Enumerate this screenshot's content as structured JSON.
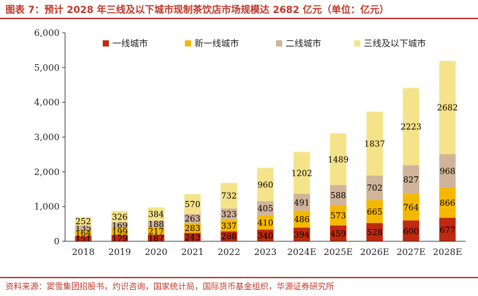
{
  "title": "图表 7：预计 2028 年三线及以下城市现制茶饮店市场规模达 2682 亿元（单位：亿元）",
  "source": "资料来源：窦雪集团招股书，灼识咨询，国家统计局，国际货币基金组织，华源证券研究所",
  "colors": {
    "title": "#c0392b",
    "tier1": "#c0290f",
    "newTier1": "#f5b800",
    "tier2": "#d0b49a",
    "tier3": "#f5e38a",
    "axis": "#333333"
  },
  "chart_data": {
    "type": "bar",
    "stacked": true,
    "categories": [
      "2018",
      "2019",
      "2020",
      "2021",
      "2022",
      "2023",
      "2024E",
      "2025E",
      "2026E",
      "2027E",
      "2028E"
    ],
    "series": [
      {
        "name": "一线城市",
        "color": "#c0290f",
        "values": [
          151,
          179,
          187,
          243,
          288,
          340,
          394,
          459,
          528,
          600,
          677
        ]
      },
      {
        "name": "新一线城市",
        "color": "#f5b800",
        "values": [
          164,
          199,
          217,
          283,
          337,
          410,
          486,
          573,
          665,
          764,
          866
        ]
      },
      {
        "name": "二线城市",
        "color": "#d0b49a",
        "values": [
          135,
          169,
          188,
          263,
          323,
          405,
          491,
          588,
          702,
          827,
          968
        ]
      },
      {
        "name": "三线及以下城市",
        "color": "#f5e38a",
        "values": [
          252,
          326,
          384,
          570,
          732,
          960,
          1202,
          1489,
          1837,
          2223,
          2682
        ]
      }
    ],
    "ylim": [
      0,
      6000
    ],
    "yticks": [
      0,
      1000,
      2000,
      3000,
      4000,
      5000,
      6000
    ],
    "ytick_labels": [
      "0",
      "1,000",
      "2,000",
      "3,000",
      "4,000",
      "5,000",
      "6,000"
    ],
    "legend_position": "top"
  }
}
